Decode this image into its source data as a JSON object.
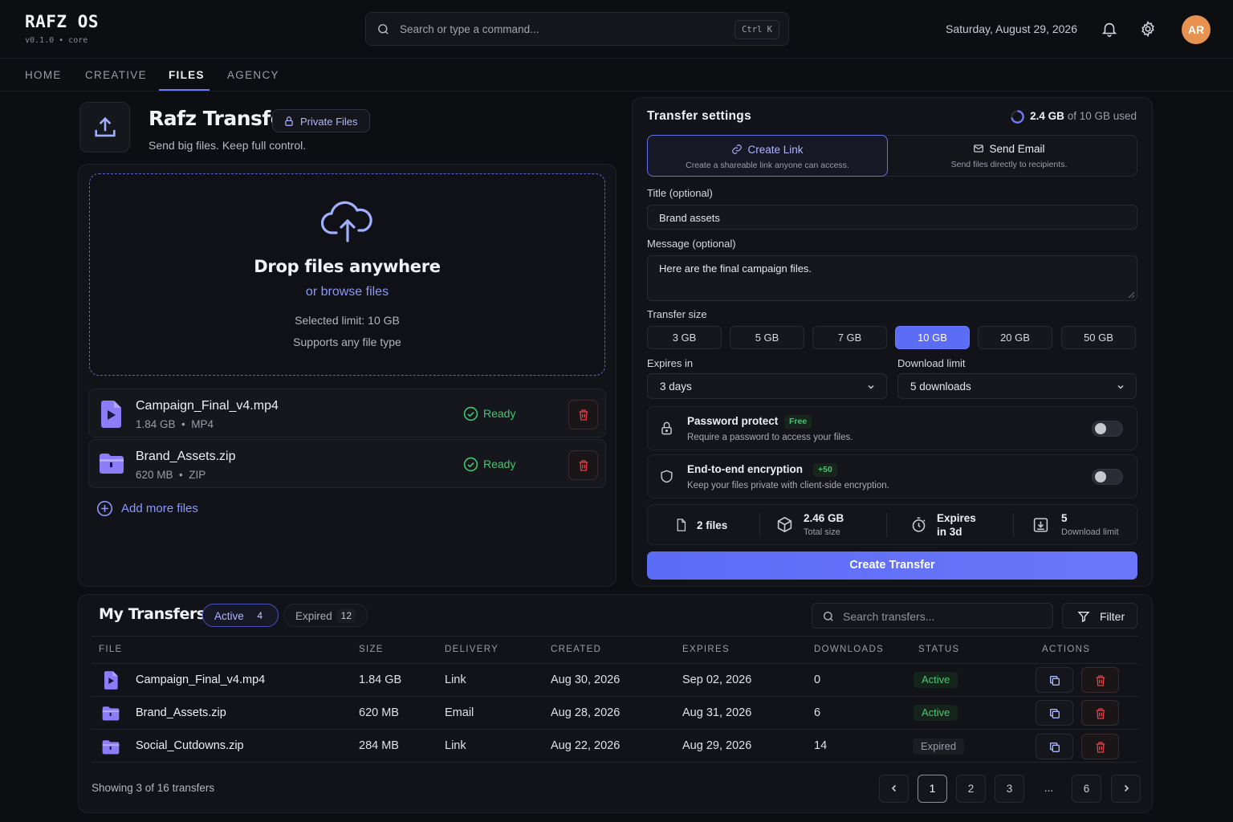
{
  "app": {
    "title": "RAFZ OS",
    "version": "v0.1.0 • core"
  },
  "search": {
    "placeholder": "Search or type a command...",
    "shortcut": "Ctrl K"
  },
  "header": {
    "date": "Saturday, August 29, 2026",
    "avatar_initials": "AR"
  },
  "nav": {
    "tabs": [
      "HOME",
      "CREATIVE",
      "FILES",
      "AGENCY"
    ],
    "active": "FILES"
  },
  "page": {
    "title": "Rafz Transfer",
    "badge": "Private Files",
    "subtitle": "Send big files. Keep full control."
  },
  "dropzone": {
    "title": "Drop files anywhere",
    "browse": "or browse files",
    "limit": "Selected limit: 10 GB",
    "types": "Supports any file type"
  },
  "queued_files": [
    {
      "name": "Campaign_Final_v4.mp4",
      "size": "1.84 GB",
      "type": "MP4",
      "status": "Ready",
      "icon": "video-file-icon"
    },
    {
      "name": "Brand_Assets.zip",
      "size": "620 MB",
      "type": "ZIP",
      "status": "Ready",
      "icon": "folder-icon"
    }
  ],
  "add_more": "Add more files",
  "settings": {
    "title": "Transfer settings",
    "storage_used": "2.4 GB",
    "storage_total": "of 10 GB used",
    "modes": [
      {
        "title": "Create Link",
        "desc": "Create a shareable link anyone can access."
      },
      {
        "title": "Send Email",
        "desc": "Send files directly to recipients."
      }
    ],
    "title_label": "Title (optional)",
    "title_value": "Brand assets",
    "message_label": "Message (optional)",
    "message_value": "Here are the final campaign files.",
    "size_label": "Transfer size",
    "sizes": [
      "3 GB",
      "5 GB",
      "7 GB",
      "10 GB",
      "20 GB",
      "50 GB"
    ],
    "size_selected": "10 GB",
    "expires_label": "Expires in",
    "expires_value": "3 days",
    "download_label": "Download limit",
    "download_value": "5 downloads",
    "password": {
      "title": "Password protect",
      "badge": "Free",
      "desc": "Require a password to access your files."
    },
    "encryption": {
      "title": "End-to-end encryption",
      "badge": "+50",
      "desc": "Keep your files private with client-side encryption."
    },
    "summary": {
      "files": "2 files",
      "size": "2.46 GB",
      "size_label": "Total size",
      "expires_a": "Expires",
      "expires_b": "in 3d",
      "downloads": "5",
      "downloads_label": "Download limit"
    },
    "create_button": "Create Transfer"
  },
  "transfers": {
    "title": "My Transfers",
    "tabs": [
      {
        "label": "Active",
        "count": "4"
      },
      {
        "label": "Expired",
        "count": "12"
      }
    ],
    "search_placeholder": "Search transfers...",
    "filter": "Filter",
    "columns": [
      "FILE",
      "SIZE",
      "DELIVERY",
      "CREATED",
      "EXPIRES",
      "DOWNLOADS",
      "STATUS",
      "ACTIONS"
    ],
    "rows": [
      {
        "file": "Campaign_Final_v4.mp4",
        "size": "1.84 GB",
        "delivery": "Link",
        "created": "Aug 30, 2026",
        "expires": "Sep 02, 2026",
        "downloads": "0",
        "status": "Active"
      },
      {
        "file": "Brand_Assets.zip",
        "size": "620 MB",
        "delivery": "Email",
        "created": "Aug 28, 2026",
        "expires": "Aug 31, 2026",
        "downloads": "6",
        "status": "Active"
      },
      {
        "file": "Social_Cutdowns.zip",
        "size": "284 MB",
        "delivery": "Link",
        "created": "Aug 22, 2026",
        "expires": "Aug 29, 2026",
        "downloads": "14",
        "status": "Expired"
      }
    ],
    "showing": "Showing 3 of 16 transfers",
    "pages": [
      "1",
      "2",
      "3",
      "...",
      "6"
    ],
    "current_page": "1"
  },
  "colors": {
    "accent": "#5b6cf5",
    "success": "#42c76e",
    "danger": "#e0404a",
    "background": "#0d0e12"
  }
}
